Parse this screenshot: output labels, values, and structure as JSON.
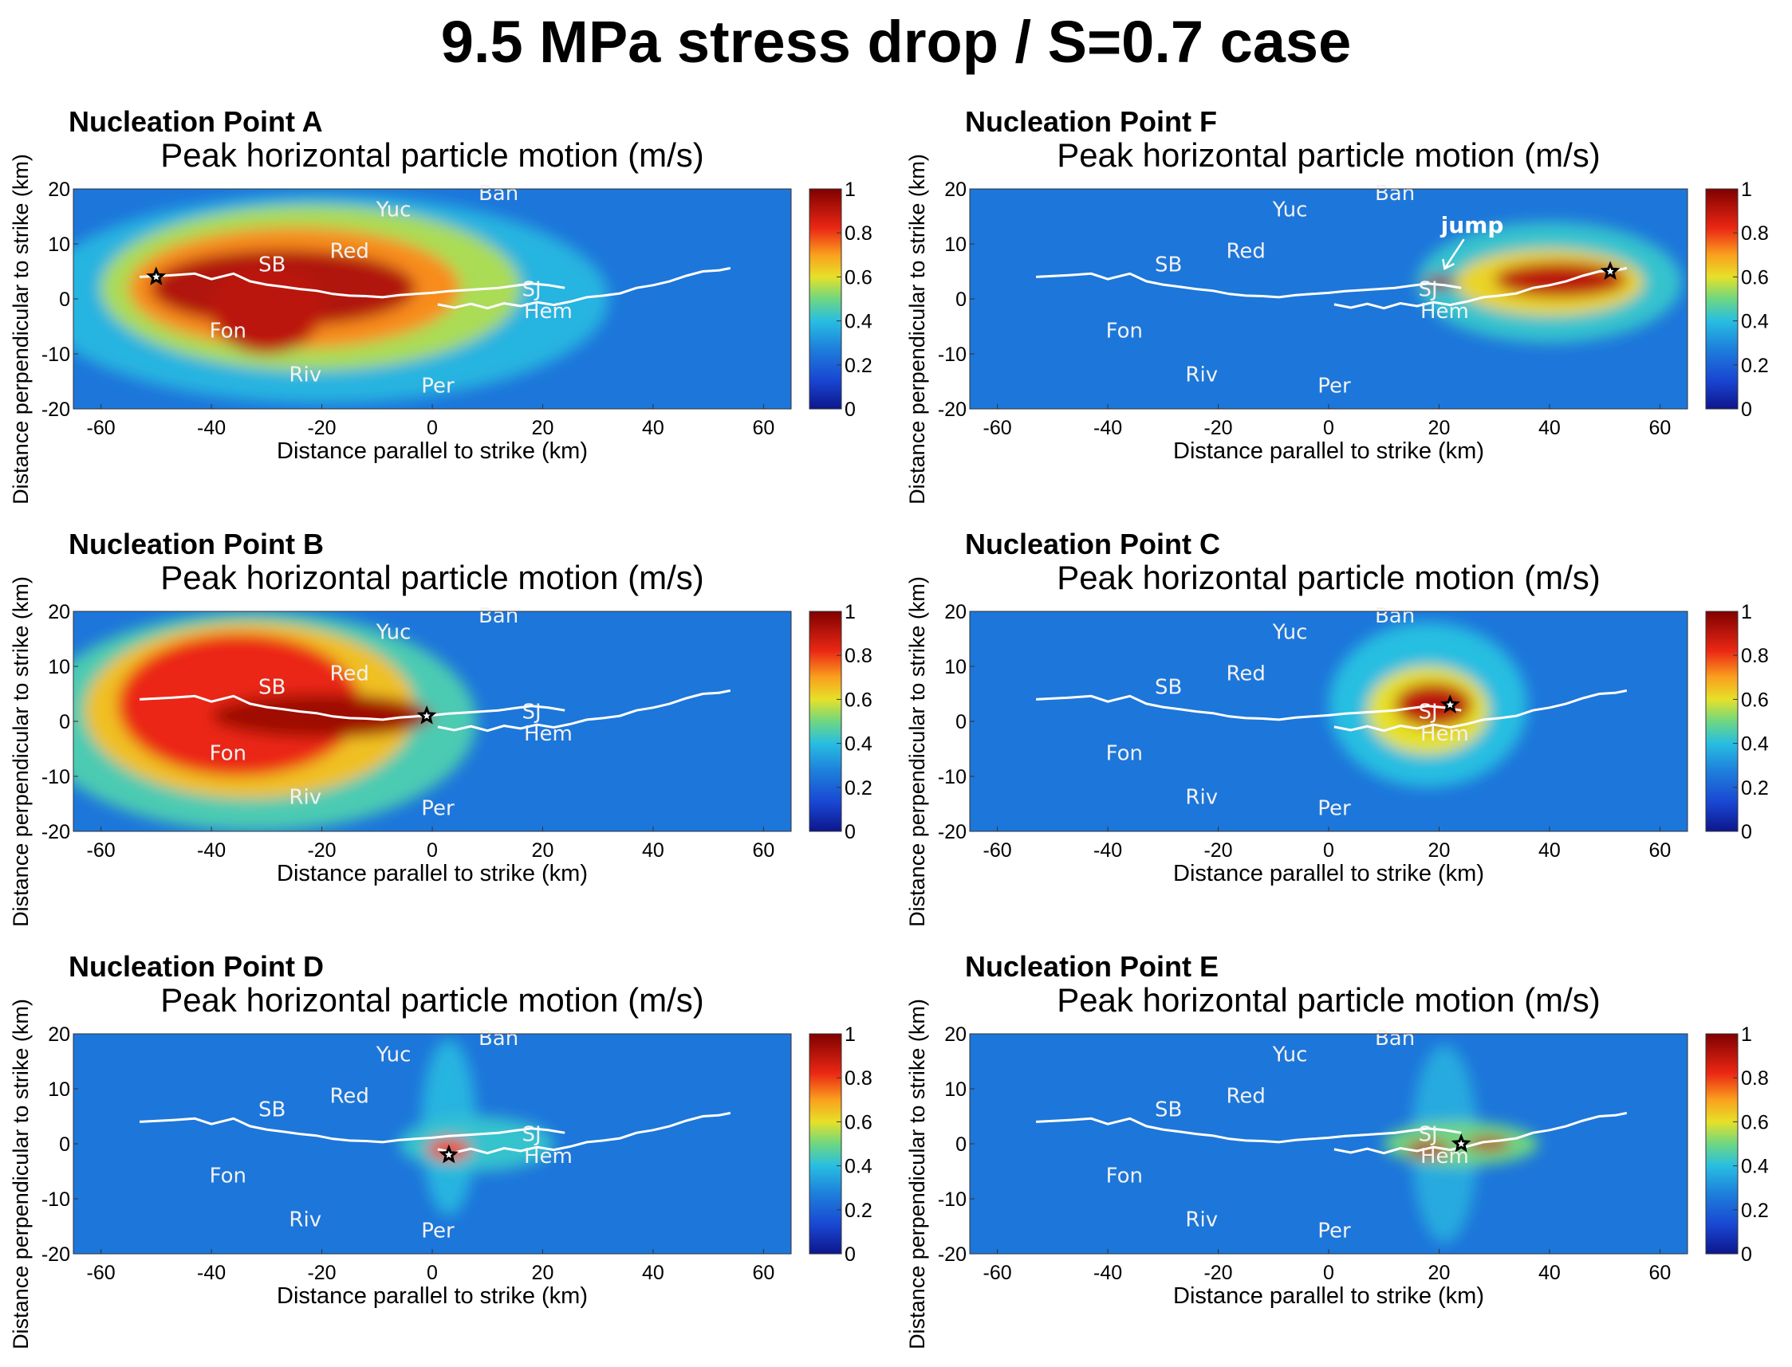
{
  "title": "9.5 MPa stress drop / S=0.7 case",
  "chart_data": [
    {
      "type": "heatmap",
      "panel_title": "Nucleation Point A",
      "subtitle": "Peak horizontal particle motion (m/s)",
      "xlabel": "Distance parallel to strike (km)",
      "ylabel": "Distance perpendicular to strike (km)",
      "xlim": [
        -65,
        65
      ],
      "ylim": [
        -20,
        20
      ],
      "xticks": [
        -60,
        -40,
        -20,
        0,
        20,
        40,
        60
      ],
      "yticks": [
        20,
        10,
        0,
        -10,
        -20
      ],
      "colorbar": {
        "ticks": [
          1,
          0.8,
          0.6,
          0.4,
          0.2,
          0
        ],
        "range": [
          0,
          1
        ]
      },
      "hypocenter": {
        "x": -50,
        "y": 4
      },
      "labels": [
        {
          "text": "Yuc",
          "x": -7,
          "y": 15
        },
        {
          "text": "Ban",
          "x": 12,
          "y": 18
        },
        {
          "text": "SB",
          "x": -29,
          "y": 5
        },
        {
          "text": "Red",
          "x": -15,
          "y": 7.5
        },
        {
          "text": "SJ",
          "x": 18,
          "y": 0.5
        },
        {
          "text": "Hem",
          "x": 21,
          "y": -3.5
        },
        {
          "text": "Fon",
          "x": -37,
          "y": -7
        },
        {
          "text": "Riv",
          "x": -23,
          "y": -15
        },
        {
          "text": "Per",
          "x": 1,
          "y": -17
        }
      ]
    },
    {
      "type": "heatmap",
      "panel_title": "Nucleation Point F",
      "subtitle": "Peak horizontal particle motion (m/s)",
      "xlabel": "Distance parallel to strike (km)",
      "ylabel": "Distance perpendicular to strike (km)",
      "xlim": [
        -65,
        65
      ],
      "ylim": [
        -20,
        20
      ],
      "xticks": [
        -60,
        -40,
        -20,
        0,
        20,
        40,
        60
      ],
      "yticks": [
        20,
        10,
        0,
        -10,
        -20
      ],
      "colorbar": {
        "ticks": [
          1,
          0.8,
          0.6,
          0.4,
          0.2,
          0
        ],
        "range": [
          0,
          1
        ]
      },
      "hypocenter": {
        "x": 51,
        "y": 5
      },
      "annotation": {
        "text": "jump",
        "x": 26,
        "y": 12
      },
      "labels": [
        {
          "text": "Yuc",
          "x": -7,
          "y": 15
        },
        {
          "text": "Ban",
          "x": 12,
          "y": 18
        },
        {
          "text": "SB",
          "x": -29,
          "y": 5
        },
        {
          "text": "Red",
          "x": -15,
          "y": 7.5
        },
        {
          "text": "SJ",
          "x": 18,
          "y": 0.5
        },
        {
          "text": "Hem",
          "x": 21,
          "y": -3.5
        },
        {
          "text": "Fon",
          "x": -37,
          "y": -7
        },
        {
          "text": "Riv",
          "x": -23,
          "y": -15
        },
        {
          "text": "Per",
          "x": 1,
          "y": -17
        }
      ]
    },
    {
      "type": "heatmap",
      "panel_title": "Nucleation Point B",
      "subtitle": "Peak horizontal particle motion (m/s)",
      "xlabel": "Distance parallel to strike (km)",
      "ylabel": "Distance perpendicular to strike (km)",
      "xlim": [
        -65,
        65
      ],
      "ylim": [
        -20,
        20
      ],
      "xticks": [
        -60,
        -40,
        -20,
        0,
        20,
        40,
        60
      ],
      "yticks": [
        20,
        10,
        0,
        -10,
        -20
      ],
      "colorbar": {
        "ticks": [
          1,
          0.8,
          0.6,
          0.4,
          0.2,
          0
        ],
        "range": [
          0,
          1
        ]
      },
      "hypocenter": {
        "x": -1,
        "y": 1
      },
      "labels": [
        {
          "text": "Yuc",
          "x": -7,
          "y": 15
        },
        {
          "text": "Ban",
          "x": 12,
          "y": 18
        },
        {
          "text": "SB",
          "x": -29,
          "y": 5
        },
        {
          "text": "Red",
          "x": -15,
          "y": 7.5
        },
        {
          "text": "SJ",
          "x": 18,
          "y": 0.5
        },
        {
          "text": "Hem",
          "x": 21,
          "y": -3.5
        },
        {
          "text": "Fon",
          "x": -37,
          "y": -7
        },
        {
          "text": "Riv",
          "x": -23,
          "y": -15
        },
        {
          "text": "Per",
          "x": 1,
          "y": -17
        }
      ]
    },
    {
      "type": "heatmap",
      "panel_title": "Nucleation Point C",
      "subtitle": "Peak horizontal particle motion (m/s)",
      "xlabel": "Distance parallel to strike (km)",
      "ylabel": "Distance perpendicular to strike (km)",
      "xlim": [
        -65,
        65
      ],
      "ylim": [
        -20,
        20
      ],
      "xticks": [
        -60,
        -40,
        -20,
        0,
        20,
        40,
        60
      ],
      "yticks": [
        20,
        10,
        0,
        -10,
        -20
      ],
      "colorbar": {
        "ticks": [
          1,
          0.8,
          0.6,
          0.4,
          0.2,
          0
        ],
        "range": [
          0,
          1
        ]
      },
      "hypocenter": {
        "x": 22,
        "y": 3
      },
      "labels": [
        {
          "text": "Yuc",
          "x": -7,
          "y": 15
        },
        {
          "text": "Ban",
          "x": 12,
          "y": 18
        },
        {
          "text": "SB",
          "x": -29,
          "y": 5
        },
        {
          "text": "Red",
          "x": -15,
          "y": 7.5
        },
        {
          "text": "SJ",
          "x": 18,
          "y": 0.5
        },
        {
          "text": "Hem",
          "x": 21,
          "y": -3.5
        },
        {
          "text": "Fon",
          "x": -37,
          "y": -7
        },
        {
          "text": "Riv",
          "x": -23,
          "y": -15
        },
        {
          "text": "Per",
          "x": 1,
          "y": -17
        }
      ]
    },
    {
      "type": "heatmap",
      "panel_title": "Nucleation Point D",
      "subtitle": "Peak horizontal particle motion (m/s)",
      "xlabel": "Distance parallel to strike (km)",
      "ylabel": "Distance perpendicular to strike (km)",
      "xlim": [
        -65,
        65
      ],
      "ylim": [
        -20,
        20
      ],
      "xticks": [
        -60,
        -40,
        -20,
        0,
        20,
        40,
        60
      ],
      "yticks": [
        20,
        10,
        0,
        -10,
        -20
      ],
      "colorbar": {
        "ticks": [
          1,
          0.8,
          0.6,
          0.4,
          0.2,
          0
        ],
        "range": [
          0,
          1
        ]
      },
      "hypocenter": {
        "x": 3,
        "y": -2
      },
      "labels": [
        {
          "text": "Yuc",
          "x": -7,
          "y": 15
        },
        {
          "text": "Ban",
          "x": 12,
          "y": 18
        },
        {
          "text": "SB",
          "x": -29,
          "y": 5
        },
        {
          "text": "Red",
          "x": -15,
          "y": 7.5
        },
        {
          "text": "SJ",
          "x": 18,
          "y": 0.5
        },
        {
          "text": "Hem",
          "x": 21,
          "y": -3.5
        },
        {
          "text": "Fon",
          "x": -37,
          "y": -7
        },
        {
          "text": "Riv",
          "x": -23,
          "y": -15
        },
        {
          "text": "Per",
          "x": 1,
          "y": -17
        }
      ]
    },
    {
      "type": "heatmap",
      "panel_title": "Nucleation Point E",
      "subtitle": "Peak horizontal particle motion (m/s)",
      "xlabel": "Distance parallel to strike (km)",
      "ylabel": "Distance perpendicular to strike (km)",
      "xlim": [
        -65,
        65
      ],
      "ylim": [
        -20,
        20
      ],
      "xticks": [
        -60,
        -40,
        -20,
        0,
        20,
        40,
        60
      ],
      "yticks": [
        20,
        10,
        0,
        -10,
        -20
      ],
      "colorbar": {
        "ticks": [
          1,
          0.8,
          0.6,
          0.4,
          0.2,
          0
        ],
        "range": [
          0,
          1
        ]
      },
      "hypocenter": {
        "x": 24,
        "y": 0
      },
      "labels": [
        {
          "text": "Yuc",
          "x": -7,
          "y": 15
        },
        {
          "text": "Ban",
          "x": 12,
          "y": 18
        },
        {
          "text": "SB",
          "x": -29,
          "y": 5
        },
        {
          "text": "Red",
          "x": -15,
          "y": 7.5
        },
        {
          "text": "SJ",
          "x": 18,
          "y": 0.5
        },
        {
          "text": "Hem",
          "x": 21,
          "y": -3.5
        },
        {
          "text": "Fon",
          "x": -37,
          "y": -7
        },
        {
          "text": "Riv",
          "x": -23,
          "y": -15
        },
        {
          "text": "Per",
          "x": 1,
          "y": -17
        }
      ]
    }
  ]
}
